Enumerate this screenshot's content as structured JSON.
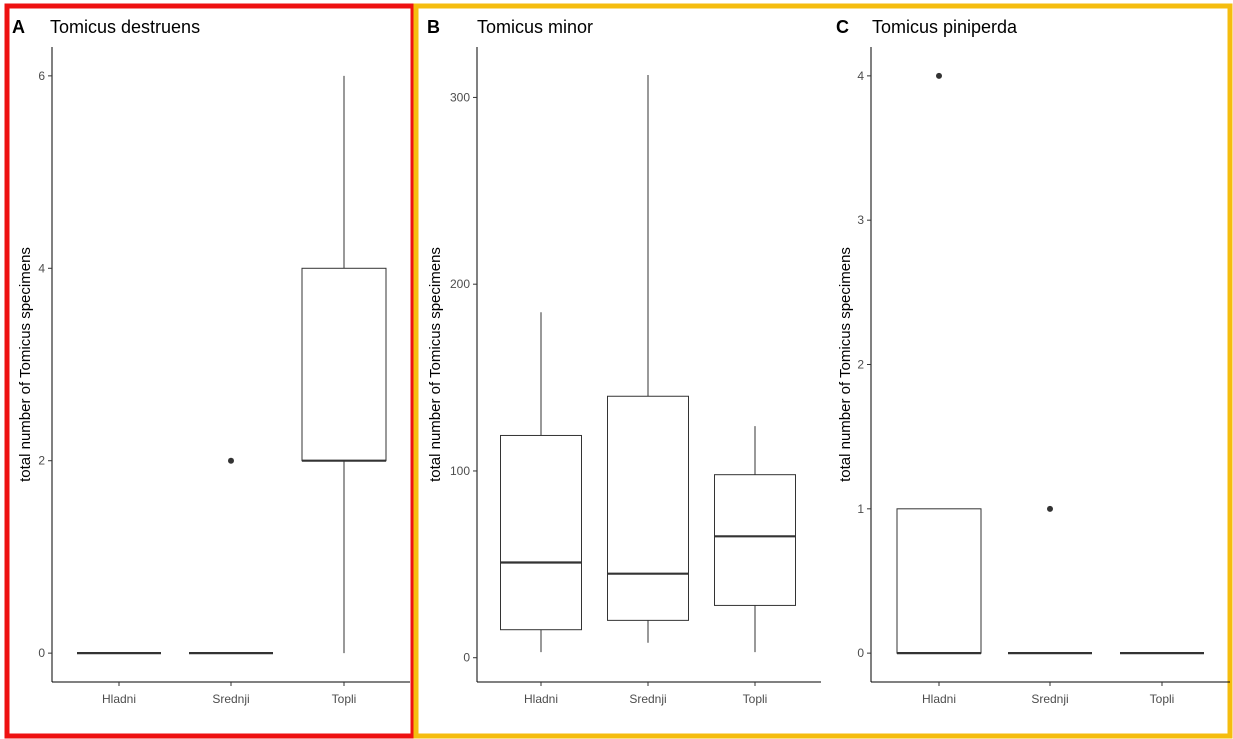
{
  "panel_frame_colors": [
    "#ee1111",
    "#f5bd0f",
    "#f5bd0f"
  ],
  "chart_data": [
    {
      "type": "boxplot",
      "tag": "A",
      "title": "Tomicus destruens",
      "ylabel": "total number of Tomicus specimens",
      "xlabel": "",
      "categories": [
        "Hladni",
        "Srednji",
        "Topli"
      ],
      "ylim": [
        -0.3,
        6.3
      ],
      "yticks": [
        0,
        2,
        4,
        6
      ],
      "boxes": [
        {
          "category": "Hladni",
          "min": 0,
          "q1": 0,
          "median": 0,
          "q3": 0,
          "max": 0,
          "outliers": []
        },
        {
          "category": "Srednji",
          "min": 0,
          "q1": 0,
          "median": 0,
          "q3": 0,
          "max": 0,
          "outliers": [
            2
          ]
        },
        {
          "category": "Topli",
          "min": 0,
          "q1": 2,
          "median": 2,
          "q3": 4,
          "max": 6,
          "outliers": []
        }
      ],
      "grid": false
    },
    {
      "type": "boxplot",
      "tag": "B",
      "title": "Tomicus minor",
      "ylabel": "total number of Tomicus specimens",
      "xlabel": "",
      "categories": [
        "Hladni",
        "Srednji",
        "Topli"
      ],
      "ylim": [
        -13,
        327
      ],
      "yticks": [
        0,
        100,
        200,
        300
      ],
      "boxes": [
        {
          "category": "Hladni",
          "min": 3,
          "q1": 15,
          "median": 51,
          "q3": 119,
          "max": 185,
          "outliers": []
        },
        {
          "category": "Srednji",
          "min": 8,
          "q1": 20,
          "median": 45,
          "q3": 140,
          "max": 312,
          "outliers": []
        },
        {
          "category": "Topli",
          "min": 3,
          "q1": 28,
          "median": 65,
          "q3": 98,
          "max": 124,
          "outliers": []
        }
      ],
      "grid": false
    },
    {
      "type": "boxplot",
      "tag": "C",
      "title": "Tomicus piniperda",
      "ylabel": "total number of Tomicus specimens",
      "xlabel": "",
      "categories": [
        "Hladni",
        "Srednji",
        "Topli"
      ],
      "ylim": [
        -0.2,
        4.2
      ],
      "yticks": [
        0,
        1,
        2,
        3,
        4
      ],
      "boxes": [
        {
          "category": "Hladni",
          "min": 0,
          "q1": 0,
          "median": 0,
          "q3": 1,
          "max": 1,
          "outliers": [
            4
          ]
        },
        {
          "category": "Srednji",
          "min": 0,
          "q1": 0,
          "median": 0,
          "q3": 0,
          "max": 0,
          "outliers": [
            1
          ]
        },
        {
          "category": "Topli",
          "min": 0,
          "q1": 0,
          "median": 0,
          "q3": 0,
          "max": 0,
          "outliers": []
        }
      ],
      "grid": false
    }
  ]
}
